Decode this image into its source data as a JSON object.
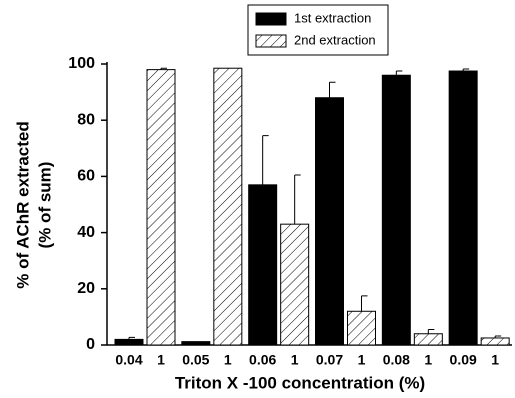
{
  "chart_data": {
    "type": "bar",
    "xlabel": "Triton X -100 concentration (%)",
    "ylabel": [
      "% of AChR extracted",
      "(% of sum)"
    ],
    "ylim": [
      0,
      100
    ],
    "yticks": [
      0,
      20,
      40,
      60,
      80,
      100
    ],
    "legend": "top",
    "series": [
      {
        "name": "1st extraction",
        "color": "#000000",
        "fill": "solid",
        "labels": [
          "0.04",
          "0.05",
          "0.06",
          "0.07",
          "0.08",
          "0.09"
        ],
        "values": [
          2,
          1.2,
          57,
          88,
          96,
          97.5
        ],
        "errors": [
          0.7,
          0,
          17.5,
          5.5,
          1.5,
          0.7
        ]
      },
      {
        "name": "2nd extraction",
        "color": "#000000",
        "fill": "hatch",
        "labels": [
          "1",
          "1",
          "1",
          "1",
          "1",
          "1"
        ],
        "values": [
          98,
          98.5,
          43,
          12,
          4,
          2.5
        ],
        "errors": [
          0.5,
          0,
          17.5,
          5.5,
          1.5,
          0.7
        ]
      }
    ]
  }
}
